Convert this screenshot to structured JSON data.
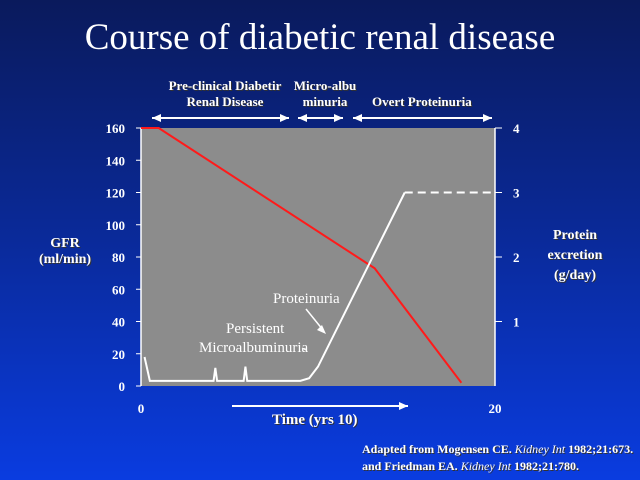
{
  "chart_data": {
    "type": "line",
    "title": "Course of diabetic renal disease",
    "xlabel": "Time (yrs 10)",
    "ylabel": "GFR (ml/min)",
    "y2label": "Protein excretion (g/day)",
    "xlim": [
      0,
      20
    ],
    "ylim": [
      0,
      160
    ],
    "y2lim": [
      0,
      4
    ],
    "xticks": [
      "0",
      "20"
    ],
    "yticks": [
      "0",
      "20",
      "40",
      "60",
      "80",
      "100",
      "120",
      "140",
      "160"
    ],
    "y2ticks": [
      "1",
      "2",
      "3",
      "4"
    ],
    "stages": [
      "Pre-clinical Diabetir Renal Disease",
      "Micro-albuminuria",
      "Overt Proteinuria"
    ],
    "series": [
      {
        "name": "GFR",
        "axis": "left",
        "color": "#ff1a1a",
        "x": [
          0,
          1,
          13.2,
          18.1
        ],
        "y": [
          160,
          160,
          73,
          2
        ]
      },
      {
        "name": "Protein excretion",
        "axis": "right",
        "color": "#ffffff",
        "x": [
          0.2,
          0.5,
          4.1,
          4.2,
          4.3,
          5.8,
          5.9,
          6.0,
          9.0,
          9.5,
          10.0,
          14.9
        ],
        "y": [
          0.45,
          0.08,
          0.08,
          0.28,
          0.08,
          0.08,
          0.3,
          0.08,
          0.08,
          0.12,
          0.3,
          3.0
        ]
      },
      {
        "name": "Protein excretion (projected)",
        "axis": "right",
        "color": "#ffffff",
        "dashed": true,
        "x": [
          14.9,
          20
        ],
        "y": [
          3.0,
          3.0
        ]
      }
    ],
    "annotations": [
      "Proteinuria",
      "Persistent",
      "Microalbuminuria"
    ]
  },
  "citation": {
    "line1a": "Adapted from Mogensen CE. ",
    "journal1": "Kidney Int",
    "line1b": " 1982;21:673.",
    "line2a": "and Friedman EA. ",
    "journal2": "Kidney Int",
    "line2b": " 1982;21:780."
  }
}
